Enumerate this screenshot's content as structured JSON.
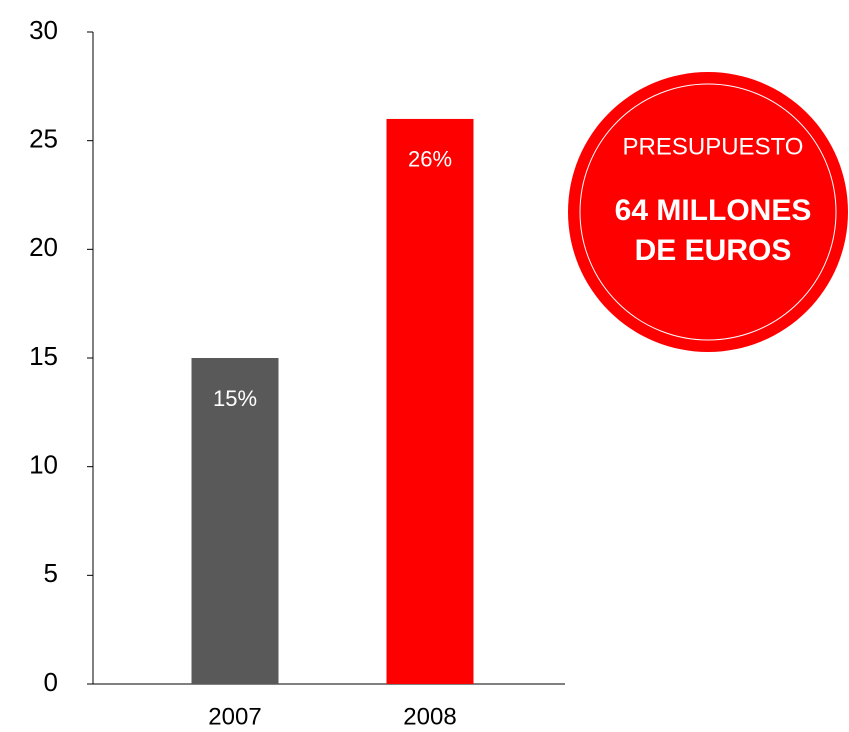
{
  "chart_data": {
    "type": "bar",
    "categories": [
      "2007",
      "2008"
    ],
    "values": [
      15,
      26
    ],
    "value_labels": [
      "15%",
      "26%"
    ],
    "colors": [
      "#595959",
      "#ff0000"
    ],
    "ylim": [
      0,
      30
    ],
    "yticks": [
      0,
      5,
      10,
      15,
      20,
      25,
      30
    ],
    "grid": false,
    "annotation": {
      "color": "#ff0000",
      "lines": [
        "PRESUPUESTO",
        "64 MILLONES",
        "DE EUROS"
      ]
    }
  }
}
